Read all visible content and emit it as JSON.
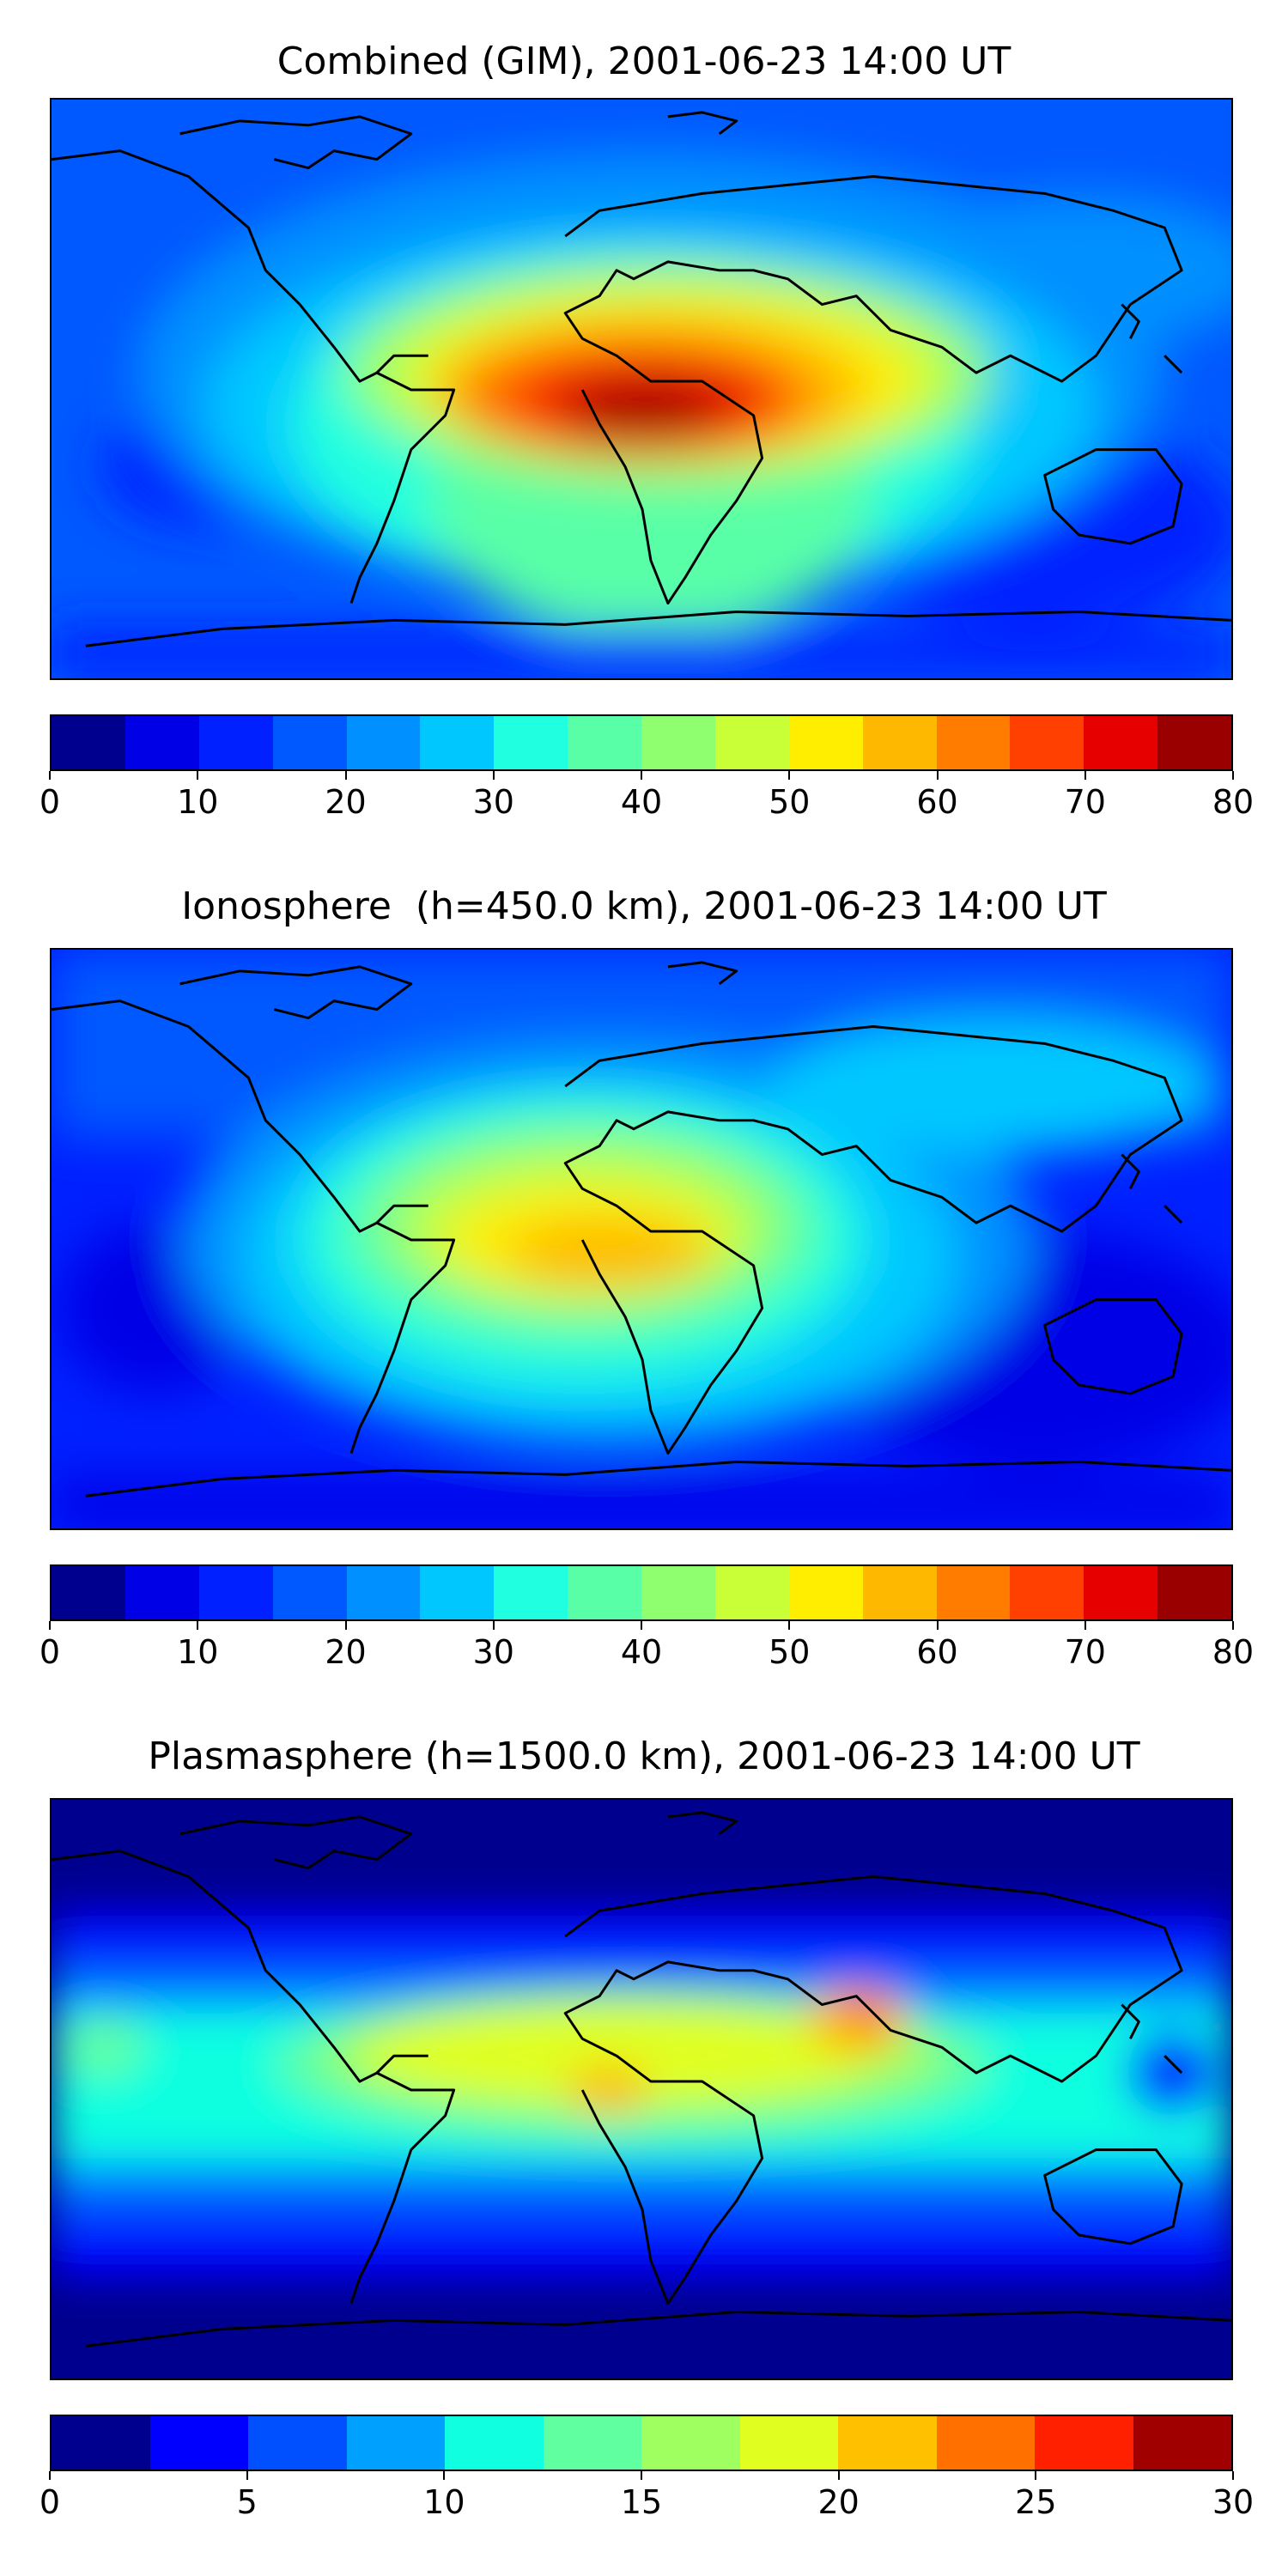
{
  "panels": [
    {
      "id": "combined",
      "title": "Combined (GIM), 2001-06-23 14:00 UT",
      "colorbar": {
        "min": 0,
        "max": 80,
        "step": 5,
        "tick_labels": [
          "0",
          "10",
          "20",
          "30",
          "40",
          "50",
          "60",
          "70",
          "80"
        ],
        "colors": [
          "#00008f",
          "#0000e6",
          "#0020ff",
          "#0058ff",
          "#0090ff",
          "#00c8ff",
          "#20ffdf",
          "#58ffa7",
          "#90ff6f",
          "#c8ff37",
          "#ffee00",
          "#ffb800",
          "#ff7c00",
          "#ff4000",
          "#e60000",
          "#9a0000"
        ]
      }
    },
    {
      "id": "ionosphere",
      "title": "Ionosphere  (h=450.0 km), 2001-06-23 14:00 UT",
      "colorbar": {
        "min": 0,
        "max": 80,
        "step": 5,
        "tick_labels": [
          "0",
          "10",
          "20",
          "30",
          "40",
          "50",
          "60",
          "70",
          "80"
        ],
        "colors": [
          "#00008f",
          "#0000e6",
          "#0020ff",
          "#0058ff",
          "#0090ff",
          "#00c8ff",
          "#20ffdf",
          "#58ffa7",
          "#90ff6f",
          "#c8ff37",
          "#ffee00",
          "#ffb800",
          "#ff7c00",
          "#ff4000",
          "#e60000",
          "#9a0000"
        ]
      }
    },
    {
      "id": "plasmasphere",
      "title": "Plasmasphere (h=1500.0 km), 2001-06-23 14:00 UT",
      "colorbar": {
        "min": 0,
        "max": 30,
        "step": 2.5,
        "tick_labels": [
          "0",
          "5",
          "10",
          "15",
          "20",
          "25",
          "30"
        ],
        "colors": [
          "#00008f",
          "#0000ff",
          "#0050ff",
          "#00a0ff",
          "#10ffe0",
          "#60ffa0",
          "#a0ff60",
          "#e0ff20",
          "#ffc000",
          "#ff7000",
          "#ff2000",
          "#a00000"
        ]
      }
    }
  ]
}
